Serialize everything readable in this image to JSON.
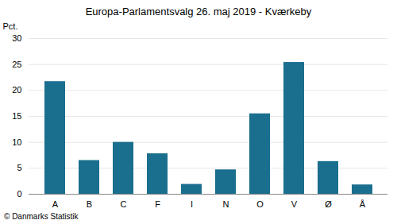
{
  "chart_data": {
    "type": "bar",
    "title": "Europa-Parlamentsvalg 26. maj 2019 - Kværkeby",
    "ylabel": "Pct.",
    "annotations": [
      "© Danmarks Statistik"
    ],
    "categories": [
      "A",
      "B",
      "C",
      "F",
      "I",
      "N",
      "O",
      "V",
      "Ø",
      "Å"
    ],
    "values": [
      21.7,
      6.5,
      10.0,
      7.8,
      1.9,
      4.7,
      15.5,
      25.4,
      6.3,
      1.8
    ],
    "color": "#1a6e8e",
    "ylim": [
      0,
      30
    ],
    "yticks": [
      0,
      5,
      10,
      15,
      20,
      25,
      30
    ],
    "grid": true
  }
}
